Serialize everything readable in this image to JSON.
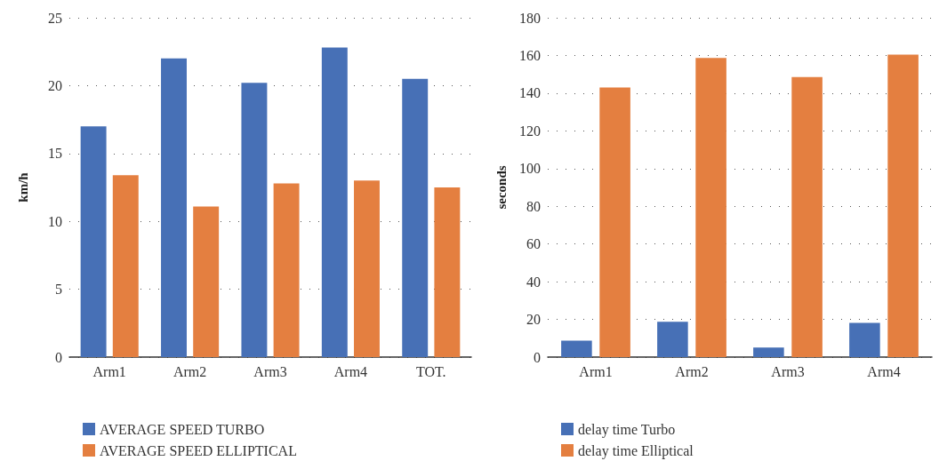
{
  "chart_data": [
    {
      "type": "bar",
      "ylabel": "km/h",
      "categories": [
        "Arm1",
        "Arm2",
        "Arm3",
        "Arm4",
        "TOT."
      ],
      "series": [
        {
          "name": "AVERAGE SPEED TURBO",
          "color": "#4770b6",
          "values": [
            17.0,
            22.0,
            20.2,
            22.8,
            20.5
          ]
        },
        {
          "name": "AVERAGE SPEED ELLIPTICAL",
          "color": "#e47f40",
          "values": [
            13.4,
            11.1,
            12.8,
            13.0,
            12.5
          ]
        }
      ],
      "ylim": [
        0,
        25
      ],
      "yticks": [
        0,
        5,
        10,
        15,
        20,
        25
      ],
      "grid": "y",
      "legend": "bottom left"
    },
    {
      "type": "bar",
      "ylabel": "seconds",
      "categories": [
        "Arm1",
        "Arm2",
        "Arm3",
        "Arm4"
      ],
      "series": [
        {
          "name": "delay time Turbo",
          "color": "#4770b6",
          "values": [
            8.7,
            18.7,
            5.1,
            18.1
          ]
        },
        {
          "name": "delay time Elliptical",
          "color": "#e47f40",
          "values": [
            143,
            158.7,
            148.6,
            160.5
          ]
        }
      ],
      "ylim": [
        0,
        180
      ],
      "yticks": [
        0,
        20,
        40,
        60,
        80,
        100,
        120,
        140,
        160,
        180
      ],
      "grid": "y",
      "legend": "bottom left"
    }
  ]
}
